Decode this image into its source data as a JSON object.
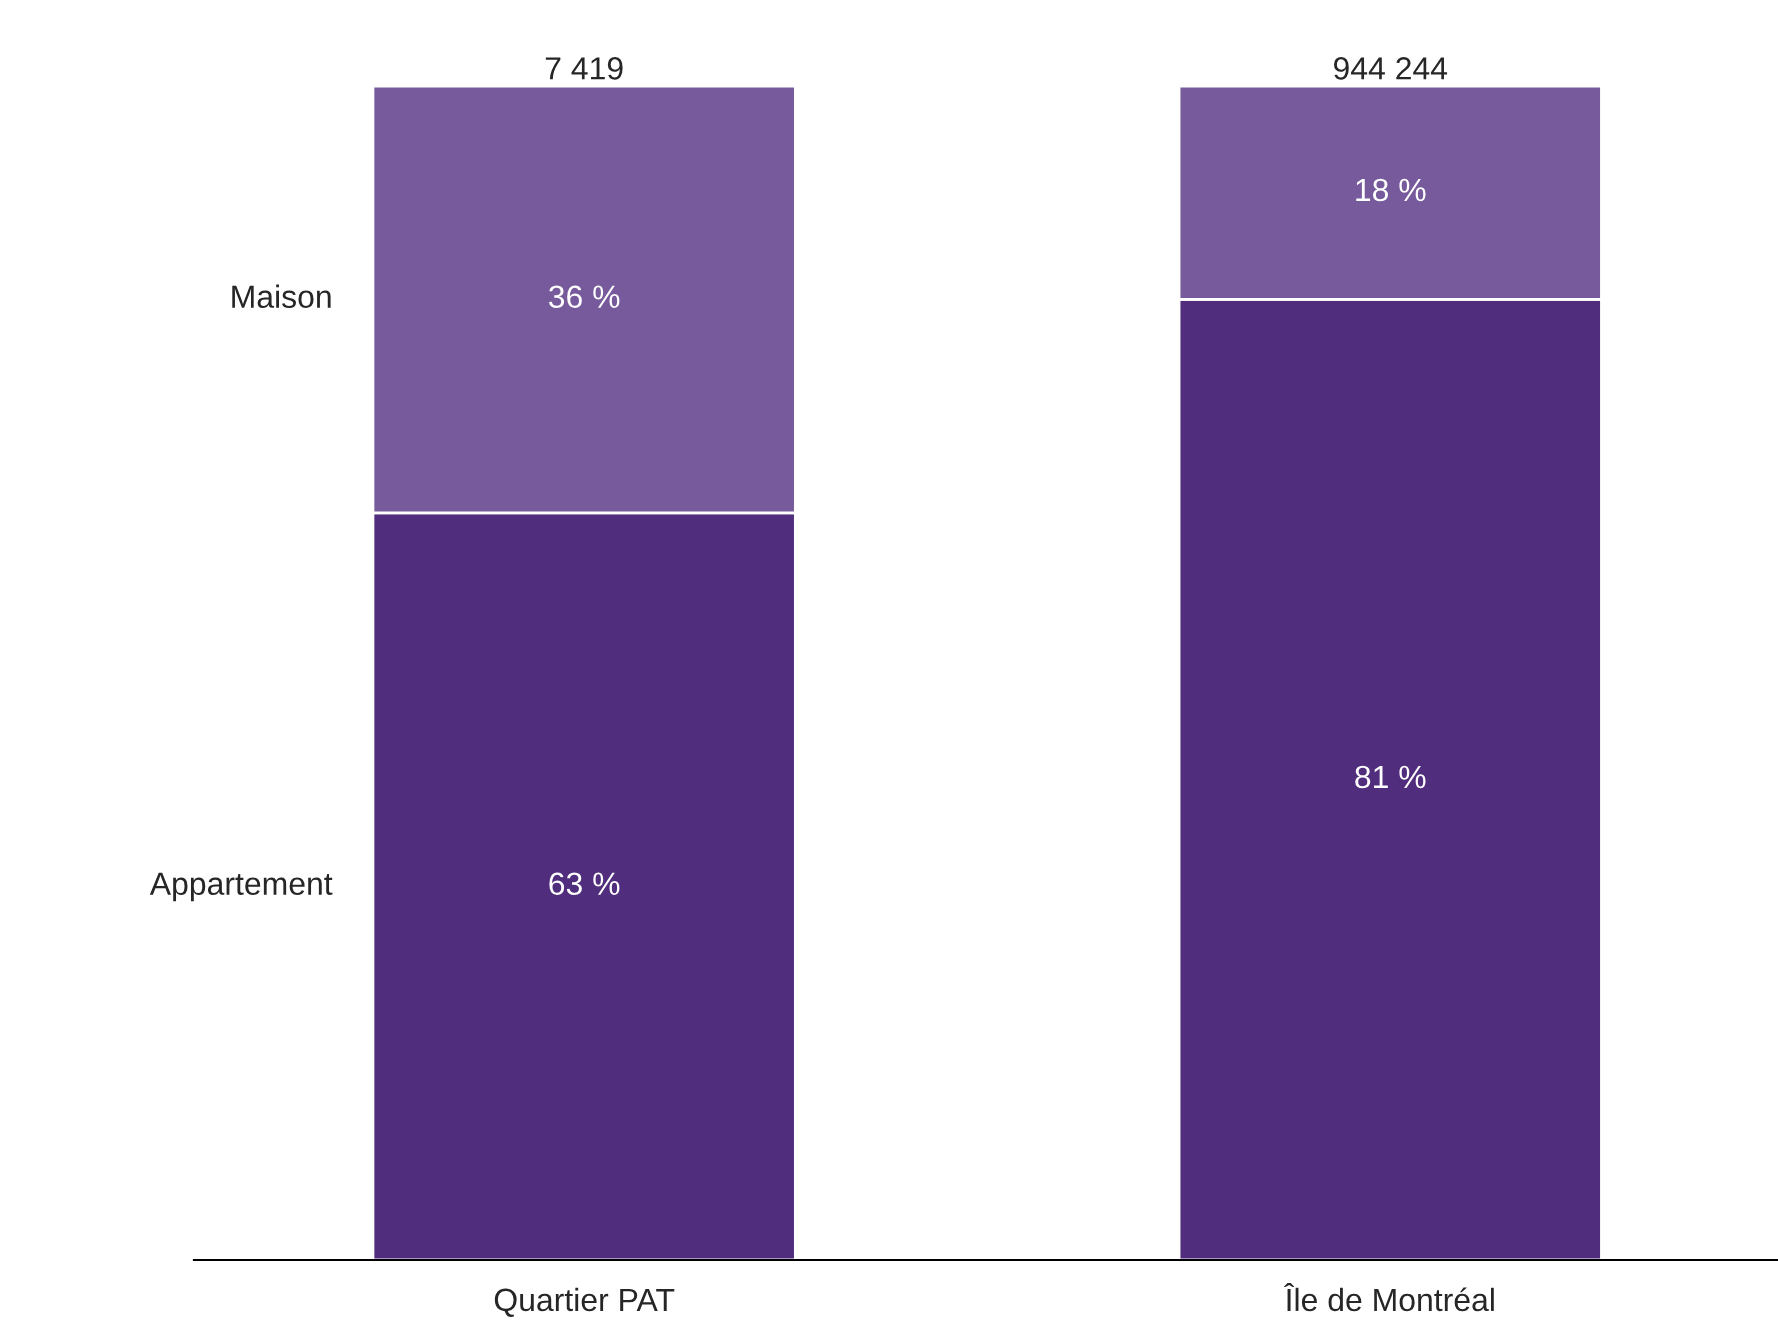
{
  "chart_data": {
    "type": "bar",
    "stacked": true,
    "categories": [
      "Quartier PAT",
      "Île de Montréal"
    ],
    "series": [
      {
        "name": "Appartement",
        "color": "#512d7d",
        "values": [
          63,
          81
        ],
        "value_labels": [
          "63 %",
          "81 %"
        ]
      },
      {
        "name": "Maison",
        "color": "#765a9b",
        "values": [
          36,
          18
        ],
        "value_labels": [
          "36 %",
          "18 %"
        ]
      }
    ],
    "annotations": [
      {
        "text": "7 419",
        "x": "Quartier PAT",
        "y": 99
      },
      {
        "text": "944 244",
        "x": "Île de Montréal",
        "y": 99
      }
    ],
    "grid": false,
    "legend": false
  }
}
